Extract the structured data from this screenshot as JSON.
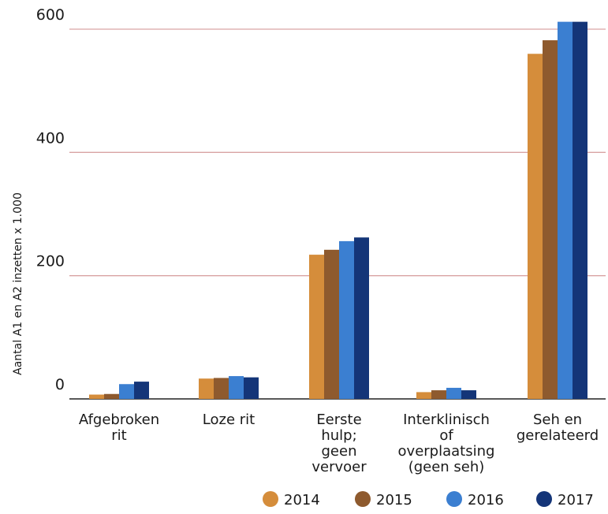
{
  "chart_data": {
    "type": "bar",
    "ylabel": "Aantal A1 en A2 inzetten x 1.000",
    "xlabel": "",
    "ylim": [
      0,
      620
    ],
    "yticks": [
      0,
      200,
      400,
      600
    ],
    "grid": true,
    "legend_position": "bottom-right",
    "categories": [
      [
        "Afgebroken",
        "rit"
      ],
      [
        "Loze rit"
      ],
      [
        "Eerste",
        "hulp;",
        "geen",
        "vervoer"
      ],
      [
        "Interklinisch",
        "of",
        "overplaatsing",
        "(geen seh)"
      ],
      [
        "Seh en",
        "gerelateerd"
      ]
    ],
    "series": [
      {
        "name": "2014",
        "color": "#d58d3b",
        "values": [
          7,
          33,
          234,
          11,
          560
        ]
      },
      {
        "name": "2015",
        "color": "#8e5a2e",
        "values": [
          8,
          34,
          242,
          14,
          582
        ]
      },
      {
        "name": "2016",
        "color": "#3b7fd1",
        "values": [
          24,
          37,
          256,
          18,
          612
        ]
      },
      {
        "name": "2017",
        "color": "#143578",
        "values": [
          28,
          35,
          262,
          14,
          612
        ]
      }
    ],
    "gridline_color": "#d9a3a3"
  }
}
